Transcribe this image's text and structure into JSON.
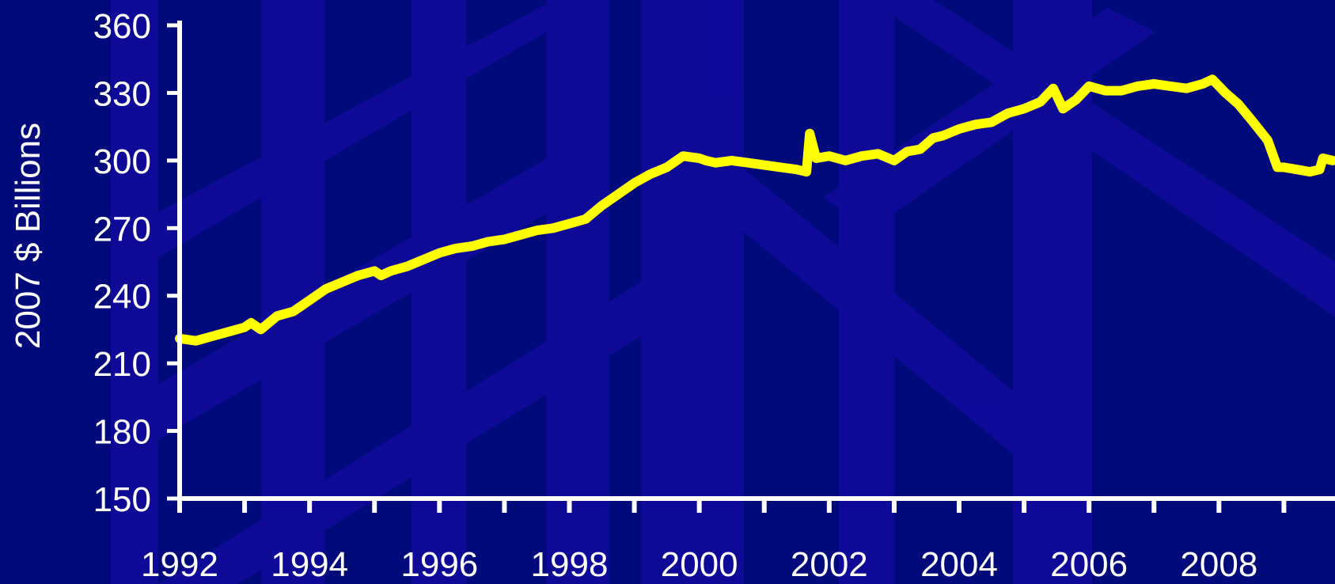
{
  "colors": {
    "background": "#000a7a",
    "pattern": "#1a0ab0",
    "axis": "#ffffff",
    "line": "#ffff00"
  },
  "chart_data": {
    "type": "line",
    "title": "",
    "xlabel": "",
    "ylabel": "2007 $ Billions",
    "xlim": [
      1992,
      2009.75
    ],
    "ylim": [
      150,
      360
    ],
    "x_tick_labels": [
      "1992",
      "1994",
      "1996",
      "1998",
      "2000",
      "2002",
      "2004",
      "2006",
      "2008"
    ],
    "y_tick_labels": [
      "150",
      "180",
      "210",
      "240",
      "270",
      "300",
      "330",
      "360"
    ],
    "grid": false,
    "legend": "none",
    "series": [
      {
        "x": [
          1992.0,
          1992.25,
          1992.5,
          1992.75,
          1993.0,
          1993.1,
          1993.25,
          1993.5,
          1993.75,
          1994.0,
          1994.25,
          1994.5,
          1994.75,
          1995.0,
          1995.1,
          1995.25,
          1995.5,
          1995.75,
          1996.0,
          1996.25,
          1996.5,
          1996.75,
          1997.0,
          1997.25,
          1997.5,
          1997.75,
          1998.0,
          1998.25,
          1998.5,
          1998.75,
          1999.0,
          1999.25,
          1999.5,
          1999.75,
          2000.0,
          2000.1,
          2000.25,
          2000.5,
          2000.75,
          2001.0,
          2001.25,
          2001.5,
          2001.65,
          2001.7,
          2001.8,
          2002.0,
          2002.25,
          2002.5,
          2002.75,
          2003.0,
          2003.2,
          2003.4,
          2003.6,
          2003.75,
          2004.0,
          2004.25,
          2004.5,
          2004.75,
          2005.0,
          2005.25,
          2005.45,
          2005.6,
          2005.8,
          2006.0,
          2006.25,
          2006.5,
          2006.75,
          2007.0,
          2007.25,
          2007.5,
          2007.75,
          2007.9,
          2008.1,
          2008.3,
          2008.5,
          2008.75,
          2008.9,
          2009.0,
          2009.2,
          2009.4,
          2009.55,
          2009.6,
          2009.75
        ],
        "values": [
          221,
          220,
          222,
          224,
          226,
          228,
          225,
          231,
          233,
          238,
          243,
          246,
          249,
          251,
          249,
          251,
          253,
          256,
          259,
          261,
          262,
          264,
          265,
          267,
          269,
          270,
          272,
          274,
          280,
          285,
          290,
          294,
          297,
          302,
          301,
          300,
          299,
          300,
          299,
          298,
          297,
          296,
          295,
          312,
          301,
          302,
          300,
          302,
          303,
          300,
          304,
          305,
          310,
          311,
          314,
          316,
          317,
          321,
          323,
          326,
          332,
          323,
          327,
          333,
          331,
          331,
          333,
          334,
          333,
          332,
          334,
          336,
          330,
          325,
          318,
          309,
          297,
          297,
          296,
          295,
          296,
          301,
          300
        ]
      }
    ]
  }
}
